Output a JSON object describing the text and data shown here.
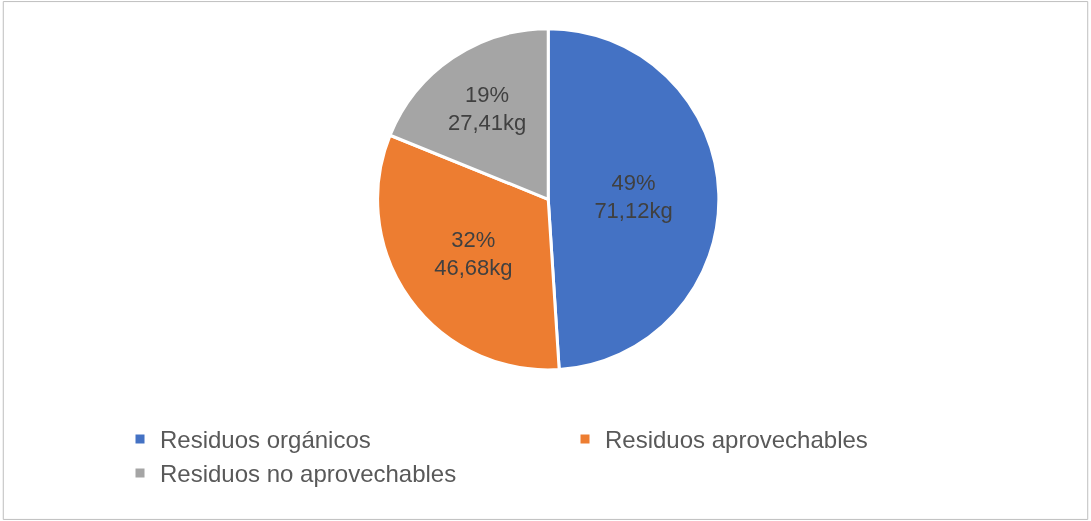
{
  "chart_data": {
    "type": "pie",
    "categories": [
      "Residuos orgánicos",
      "Residuos aprovechables",
      "Residuos no aprovechables"
    ],
    "values": [
      71.12,
      46.68,
      27.41
    ],
    "colors": [
      "#4472c4",
      "#ed7d31",
      "#a5a5a5"
    ],
    "value_labels": [
      "49%\n71,12kg",
      "32%\n46,68kg",
      "19%\n27,41kg"
    ],
    "legend": "bottom"
  }
}
